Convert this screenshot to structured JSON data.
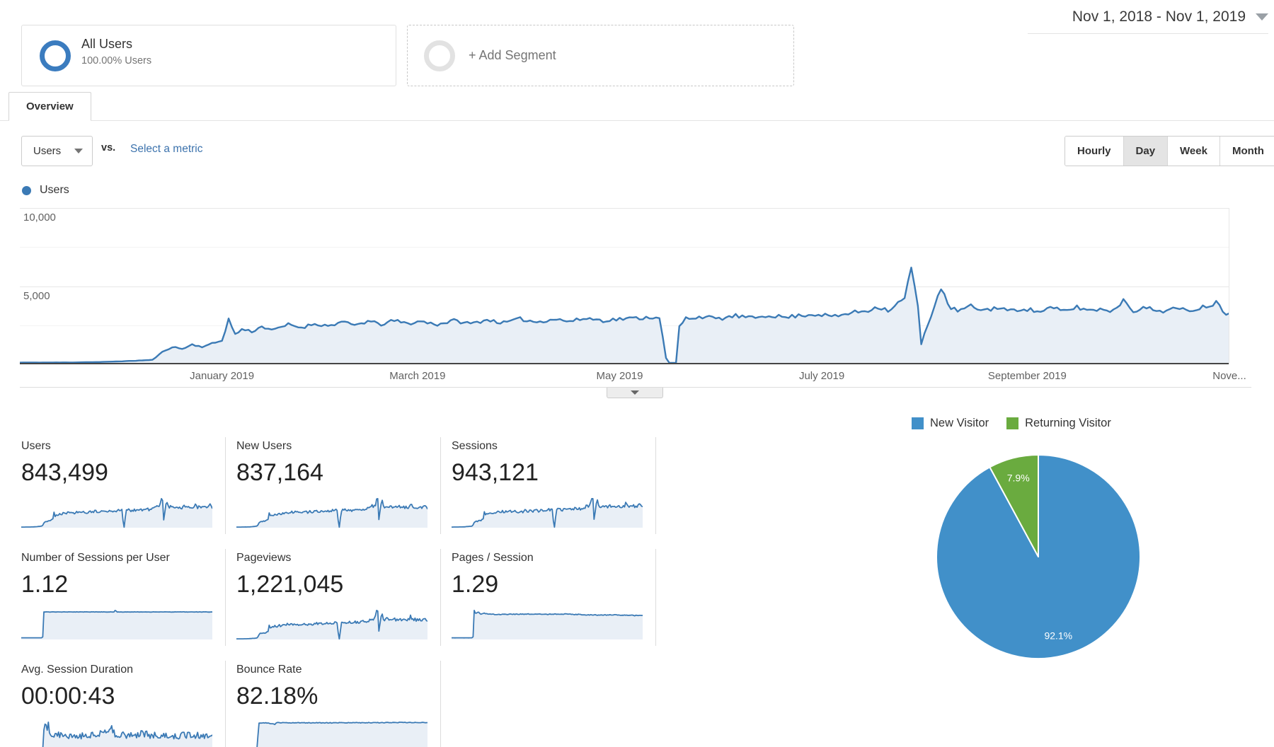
{
  "segment_bar": {
    "all_users": {
      "title": "All Users",
      "subtitle": "100.00% Users"
    },
    "add_segment": {
      "label": "+ Add Segment"
    }
  },
  "date_range": {
    "label": "Nov 1, 2018 - Nov 1, 2019"
  },
  "tab": {
    "label": "Overview"
  },
  "controls": {
    "metric_dropdown": {
      "value": "Users"
    },
    "vs_label": "vs.",
    "compare_link": "Select a metric",
    "granularity": [
      {
        "label": "Hourly",
        "selected": false
      },
      {
        "label": "Day",
        "selected": true
      },
      {
        "label": "Week",
        "selected": false
      },
      {
        "label": "Month",
        "selected": false
      }
    ]
  },
  "legend": {
    "label": "Users"
  },
  "colors": {
    "line_blue": "#3b7ab5",
    "area_fill": "#e9eff6",
    "pie_blue": "#4190c9",
    "pie_green": "#6aab3f",
    "link_blue": "#3d73ad"
  },
  "chart_data": [
    {
      "name": "users-over-time",
      "type": "area",
      "series_label": "Users",
      "granularity": "Day",
      "x_axis": {
        "start": "Nov 1, 2018",
        "end": "Nov 1, 2019",
        "labels": [
          "January 2019",
          "March 2019",
          "May 2019",
          "July 2019",
          "September 2019",
          "Nove..."
        ],
        "label_days": [
          61,
          120,
          181,
          242,
          304,
          365
        ],
        "range_days": [
          0,
          365
        ]
      },
      "y_axis": {
        "ylim": [
          0,
          10000
        ],
        "ticks": [
          {
            "value": 5000,
            "label": "5,000"
          },
          {
            "value": 10000,
            "label": "10,000"
          }
        ],
        "minor_gridlines": [
          2500,
          7500
        ]
      },
      "approx_keypoints_day_value": [
        [
          0,
          110
        ],
        [
          15,
          120
        ],
        [
          25,
          150
        ],
        [
          33,
          210
        ],
        [
          40,
          280
        ],
        [
          43,
          780
        ],
        [
          46,
          1120
        ],
        [
          49,
          980
        ],
        [
          52,
          1260
        ],
        [
          55,
          1120
        ],
        [
          58,
          1320
        ],
        [
          61,
          1520
        ],
        [
          63,
          2880
        ],
        [
          65,
          1900
        ],
        [
          67,
          2250
        ],
        [
          70,
          2100
        ],
        [
          73,
          2400
        ],
        [
          77,
          2200
        ],
        [
          81,
          2550
        ],
        [
          85,
          2350
        ],
        [
          89,
          2600
        ],
        [
          93,
          2450
        ],
        [
          97,
          2700
        ],
        [
          101,
          2500
        ],
        [
          105,
          2750
        ],
        [
          109,
          2550
        ],
        [
          113,
          2800
        ],
        [
          117,
          2600
        ],
        [
          121,
          2750
        ],
        [
          126,
          2550
        ],
        [
          131,
          2800
        ],
        [
          136,
          2600
        ],
        [
          141,
          2850
        ],
        [
          146,
          2650
        ],
        [
          151,
          2900
        ],
        [
          156,
          2700
        ],
        [
          161,
          2900
        ],
        [
          166,
          2750
        ],
        [
          171,
          2950
        ],
        [
          176,
          2800
        ],
        [
          181,
          2900
        ],
        [
          186,
          2950
        ],
        [
          190,
          3000
        ],
        [
          193,
          3050
        ],
        [
          195,
          400
        ],
        [
          196,
          90
        ],
        [
          198,
          90
        ],
        [
          199,
          2400
        ],
        [
          201,
          2950
        ],
        [
          206,
          3050
        ],
        [
          211,
          2900
        ],
        [
          216,
          3100
        ],
        [
          221,
          2950
        ],
        [
          226,
          3150
        ],
        [
          231,
          3000
        ],
        [
          236,
          3150
        ],
        [
          241,
          3200
        ],
        [
          246,
          3050
        ],
        [
          251,
          3300
        ],
        [
          256,
          3450
        ],
        [
          259,
          3700
        ],
        [
          262,
          3450
        ],
        [
          265,
          3900
        ],
        [
          267,
          4200
        ],
        [
          269,
          6250
        ],
        [
          271,
          3600
        ],
        [
          272,
          1300
        ],
        [
          274,
          2600
        ],
        [
          276,
          3700
        ],
        [
          278,
          4950
        ],
        [
          280,
          3750
        ],
        [
          283,
          3400
        ],
        [
          287,
          3700
        ],
        [
          291,
          3450
        ],
        [
          295,
          3650
        ],
        [
          299,
          3400
        ],
        [
          303,
          3600
        ],
        [
          307,
          3350
        ],
        [
          311,
          3600
        ],
        [
          315,
          3400
        ],
        [
          319,
          3650
        ],
        [
          323,
          3450
        ],
        [
          327,
          3550
        ],
        [
          330,
          3400
        ],
        [
          333,
          4150
        ],
        [
          336,
          3450
        ],
        [
          340,
          3600
        ],
        [
          344,
          3400
        ],
        [
          348,
          3550
        ],
        [
          352,
          3450
        ],
        [
          356,
          3600
        ],
        [
          359,
          3800
        ],
        [
          361,
          3950
        ],
        [
          363,
          3500
        ],
        [
          364,
          3200
        ],
        [
          365,
          3400
        ]
      ],
      "noise": 0.04,
      "n_points": 366
    },
    {
      "name": "visitor-type-share",
      "type": "pie",
      "labels": [
        "New Visitor",
        "Returning Visitor"
      ],
      "values": [
        92.1,
        7.9
      ],
      "value_labels": [
        "92.1%",
        "7.9%"
      ],
      "colors": [
        "#4190c9",
        "#6aab3f"
      ],
      "legend_position": "top"
    }
  ],
  "metrics": [
    {
      "label": "Users",
      "value": "843,499",
      "spark": "traffic",
      "seed": 21
    },
    {
      "label": "New Users",
      "value": "837,164",
      "spark": "traffic",
      "seed": 22
    },
    {
      "label": "Sessions",
      "value": "943,121",
      "spark": "traffic",
      "seed": 23
    },
    {
      "label": "Number of Sessions per User",
      "value": "1.12",
      "spark": "flat_step",
      "seed": 24
    },
    {
      "label": "Pageviews",
      "value": "1,221,045",
      "spark": "traffic",
      "seed": 25
    },
    {
      "label": "Pages / Session",
      "value": "1.29",
      "spark": "pages_session",
      "seed": 26
    },
    {
      "label": "Avg. Session Duration",
      "value": "00:00:43",
      "spark": "duration",
      "seed": 27
    },
    {
      "label": "Bounce Rate",
      "value": "82.18%",
      "spark": "bounce",
      "seed": 28
    }
  ],
  "spark_shapes": {
    "traffic": {
      "ref": "main",
      "noise": 0.07
    },
    "flat_step": {
      "noise": 0.006,
      "keypoints": [
        [
          0,
          0.07
        ],
        [
          41,
          0.07
        ],
        [
          42,
          1.12
        ],
        [
          178,
          1.12
        ],
        [
          180,
          1.23
        ],
        [
          182,
          1.12
        ],
        [
          365,
          1.12
        ]
      ]
    },
    "pages_session": {
      "noise": 0.015,
      "keypoints": [
        [
          0,
          0.09
        ],
        [
          41,
          0.09
        ],
        [
          42,
          1.62
        ],
        [
          46,
          1.38
        ],
        [
          52,
          1.46
        ],
        [
          56,
          1.34
        ],
        [
          62,
          1.4
        ],
        [
          85,
          1.33
        ],
        [
          130,
          1.36
        ],
        [
          180,
          1.34
        ],
        [
          220,
          1.36
        ],
        [
          260,
          1.31
        ],
        [
          310,
          1.31
        ],
        [
          365,
          1.27
        ]
      ]
    },
    "duration": {
      "noise": 0.22,
      "keypoints": [
        [
          0,
          3
        ],
        [
          41,
          3
        ],
        [
          43,
          52
        ],
        [
          45,
          78
        ],
        [
          48,
          60
        ],
        [
          52,
          68
        ],
        [
          56,
          47
        ],
        [
          70,
          44
        ],
        [
          100,
          41
        ],
        [
          140,
          45
        ],
        [
          176,
          62
        ],
        [
          180,
          43
        ],
        [
          230,
          46
        ],
        [
          280,
          41
        ],
        [
          330,
          43
        ],
        [
          365,
          40
        ]
      ]
    },
    "bounce": {
      "noise": 0.012,
      "keypoints": [
        [
          0,
          2
        ],
        [
          40,
          2
        ],
        [
          42,
          82.5
        ],
        [
          58,
          82.3
        ],
        [
          74,
          78.5
        ],
        [
          77,
          83
        ],
        [
          150,
          82.6
        ],
        [
          250,
          83.1
        ],
        [
          320,
          83.6
        ],
        [
          365,
          83.6
        ]
      ]
    }
  }
}
